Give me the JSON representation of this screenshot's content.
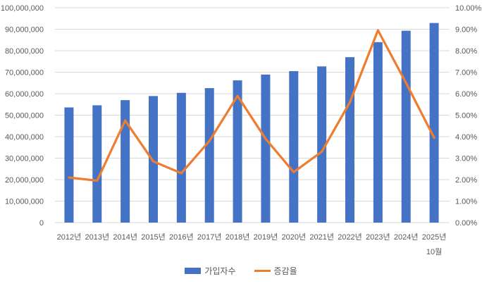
{
  "chart_data": {
    "type": "combo-bar-line",
    "categories": [
      "2012년",
      "2013년",
      "2014년",
      "2015년",
      "2016년",
      "2017년",
      "2018년",
      "2019년",
      "2020년",
      "2021년",
      "2022년",
      "2023년",
      "2024년",
      "2025년"
    ],
    "last_category_second_line": "10월",
    "series": [
      {
        "name": "가입자수",
        "type": "bar",
        "axis": "left",
        "color": "#4472C4",
        "values": [
          53600000,
          54600000,
          57000000,
          58900000,
          60400000,
          62600000,
          66200000,
          68900000,
          70500000,
          72700000,
          77000000,
          84000000,
          89300000,
          92900000
        ]
      },
      {
        "name": "증감율",
        "type": "line",
        "axis": "right",
        "color": "#ED7D31",
        "values": [
          2.1,
          1.95,
          4.75,
          2.85,
          2.3,
          3.8,
          5.9,
          3.9,
          2.35,
          3.3,
          5.6,
          8.95,
          6.5,
          3.95
        ]
      }
    ],
    "left_axis": {
      "min": 0,
      "max": 100000000,
      "step": 10000000,
      "tick_labels": [
        "0",
        "10,000,000",
        "20,000,000",
        "30,000,000",
        "40,000,000",
        "50,000,000",
        "60,000,000",
        "70,000,000",
        "80,000,000",
        "90,000,000",
        "100,000,000"
      ]
    },
    "right_axis": {
      "min": 0,
      "max": 10,
      "step": 1,
      "tick_labels": [
        "0.00%",
        "1.00%",
        "2.00%",
        "3.00%",
        "4.00%",
        "5.00%",
        "6.00%",
        "7.00%",
        "8.00%",
        "9.00%",
        "10.00%"
      ]
    },
    "grid": true,
    "legend_position": "bottom",
    "colors": {
      "bar": "#4472C4",
      "line": "#ED7D31",
      "gridline": "#D9D9D9",
      "axis_text": "#595959",
      "background": "#FFFFFF"
    }
  }
}
